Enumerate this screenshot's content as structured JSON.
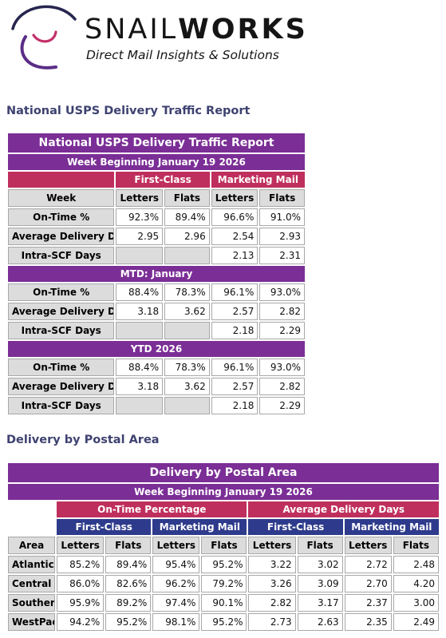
{
  "logo": {
    "brand_light": "SNAIL",
    "brand_bold": "WORKS",
    "tagline": "Direct Mail Insights & Solutions",
    "colors": {
      "arc_purple": "#5b2d86",
      "arc_navy": "#26264f",
      "arc_pink": "#c4306a"
    }
  },
  "section1_title": "National USPS Delivery Traffic Report",
  "table1": {
    "title": "National USPS Delivery Traffic Report",
    "week": "Week Beginning January 19 2026",
    "group_first_class": "First-Class",
    "group_marketing": "Marketing Mail",
    "col_week": "Week",
    "col_letters": "Letters",
    "col_flats": "Flats",
    "mtd_title": "MTD: January",
    "ytd_title": "YTD 2026",
    "labels": {
      "on_time": "On-Time %",
      "avg_days": "Average Delivery Days",
      "intra_scf": "Intra-SCF Days"
    },
    "week_rows": {
      "on_time": [
        "92.3%",
        "89.4%",
        "96.6%",
        "91.0%"
      ],
      "avg_days": [
        "2.95",
        "2.96",
        "2.54",
        "2.93"
      ],
      "intra_scf": [
        "",
        "",
        "2.13",
        "2.31"
      ]
    },
    "mtd_rows": {
      "on_time": [
        "88.4%",
        "78.3%",
        "96.1%",
        "93.0%"
      ],
      "avg_days": [
        "3.18",
        "3.62",
        "2.57",
        "2.82"
      ],
      "intra_scf": [
        "",
        "",
        "2.18",
        "2.29"
      ]
    },
    "ytd_rows": {
      "on_time": [
        "88.4%",
        "78.3%",
        "96.1%",
        "93.0%"
      ],
      "avg_days": [
        "3.18",
        "3.62",
        "2.57",
        "2.82"
      ],
      "intra_scf": [
        "",
        "",
        "2.18",
        "2.29"
      ]
    }
  },
  "section2_title": "Delivery by Postal Area",
  "table2": {
    "title": "Delivery by Postal Area",
    "week": "Week Beginning January 19 2026",
    "group_on_time": "On-Time Percentage",
    "group_avg_days": "Average Delivery Days",
    "sub_first_class": "First-Class",
    "sub_marketing": "Marketing Mail",
    "col_area": "Area",
    "col_letters": "Letters",
    "col_flats": "Flats",
    "rows": [
      {
        "area": "Atlantic",
        "values": [
          "85.2%",
          "89.4%",
          "95.4%",
          "95.2%",
          "3.22",
          "3.02",
          "2.72",
          "2.48"
        ]
      },
      {
        "area": "Central",
        "values": [
          "86.0%",
          "82.6%",
          "96.2%",
          "79.2%",
          "3.26",
          "3.09",
          "2.70",
          "4.20"
        ]
      },
      {
        "area": "Southern",
        "values": [
          "95.9%",
          "89.2%",
          "97.4%",
          "90.1%",
          "2.82",
          "3.17",
          "2.37",
          "3.00"
        ]
      },
      {
        "area": "WestPac",
        "values": [
          "94.2%",
          "95.2%",
          "98.1%",
          "95.2%",
          "2.73",
          "2.63",
          "2.35",
          "2.49"
        ]
      }
    ]
  }
}
